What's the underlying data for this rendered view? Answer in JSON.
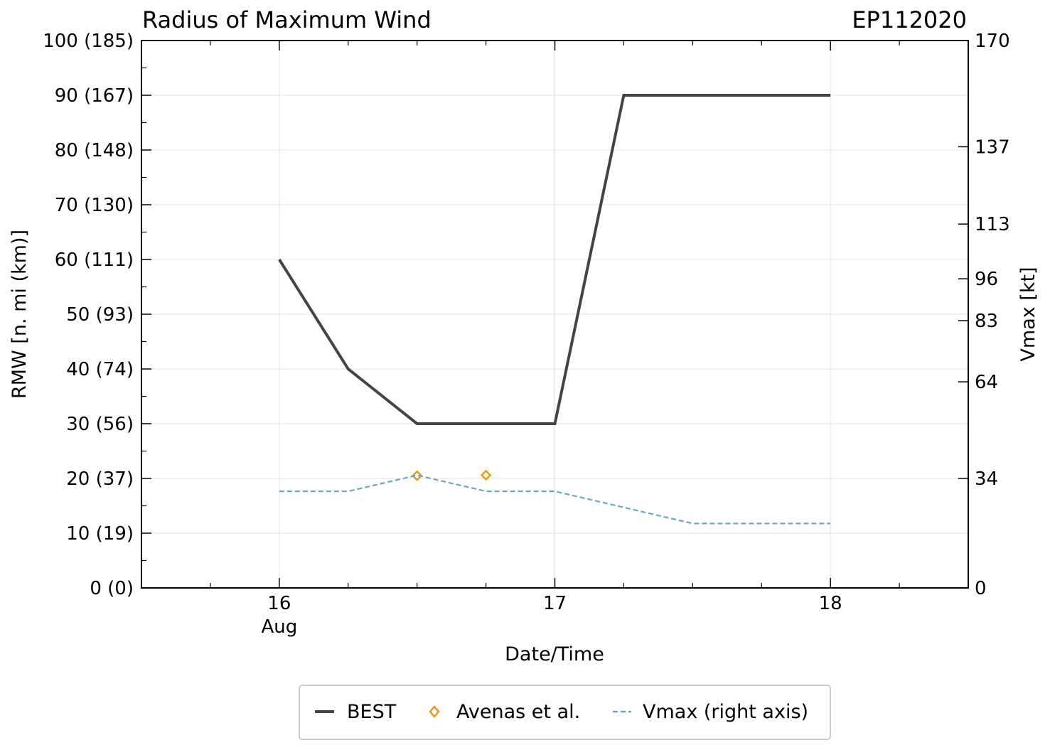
{
  "header": {
    "title": "Radius of Maximum Wind",
    "storm_id": "EP112020"
  },
  "chart_data": {
    "type": "line",
    "title": "Radius of Maximum Wind",
    "xlabel": "Date/Time",
    "ylabel": "RMW [n. mi (km)]",
    "y2label": "Vmax [kt]",
    "xlim": [
      15.5,
      18.5
    ],
    "ylim": [
      0,
      100
    ],
    "y2lim": [
      0,
      170
    ],
    "x_ticks": [
      {
        "value": 16,
        "label": "16",
        "sublabel": "Aug"
      },
      {
        "value": 17,
        "label": "17",
        "sublabel": ""
      },
      {
        "value": 18,
        "label": "18",
        "sublabel": ""
      }
    ],
    "y_ticks": [
      {
        "value": 0,
        "label": "0 (0)"
      },
      {
        "value": 10,
        "label": "10 (19)"
      },
      {
        "value": 20,
        "label": "20 (37)"
      },
      {
        "value": 30,
        "label": "30 (56)"
      },
      {
        "value": 40,
        "label": "40 (74)"
      },
      {
        "value": 50,
        "label": "50 (93)"
      },
      {
        "value": 60,
        "label": "60 (111)"
      },
      {
        "value": 70,
        "label": "70 (130)"
      },
      {
        "value": 80,
        "label": "80 (148)"
      },
      {
        "value": 90,
        "label": "90 (167)"
      },
      {
        "value": 100,
        "label": "100 (185)"
      }
    ],
    "y2_ticks": [
      {
        "value": 0,
        "label": "0"
      },
      {
        "value": 34,
        "label": "34"
      },
      {
        "value": 64,
        "label": "64"
      },
      {
        "value": 83,
        "label": "83"
      },
      {
        "value": 96,
        "label": "96"
      },
      {
        "value": 113,
        "label": "113"
      },
      {
        "value": 137,
        "label": "137"
      },
      {
        "value": 170,
        "label": "170"
      }
    ],
    "grid": true,
    "legend_position": "bottom-center",
    "series": [
      {
        "name": "BEST",
        "axis": "left",
        "style": "solid",
        "color": "#444444",
        "x": [
          16.0,
          16.25,
          16.5,
          16.75,
          17.0,
          17.25,
          17.5,
          17.75,
          18.0
        ],
        "y": [
          60,
          40,
          30,
          30,
          30,
          90,
          90,
          90,
          90
        ]
      },
      {
        "name": "Avenas et al.",
        "axis": "left",
        "style": "marker",
        "color": "#e69a22",
        "x": [
          16.5,
          16.75
        ],
        "y": [
          20.5,
          20.6
        ]
      },
      {
        "name": "Vmax (right axis)",
        "axis": "right",
        "style": "dashed",
        "color": "#6aaab8",
        "x": [
          16.0,
          16.25,
          16.5,
          16.75,
          17.0,
          17.25,
          17.5,
          17.75,
          18.0
        ],
        "y": [
          30,
          30,
          35,
          30,
          30,
          25,
          20,
          20,
          20
        ]
      }
    ]
  }
}
